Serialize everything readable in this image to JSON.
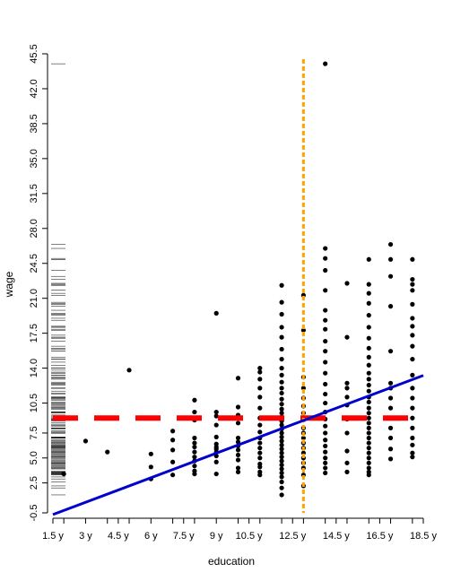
{
  "chart_data": {
    "type": "scatter",
    "xlabel": "education",
    "ylabel": "wage",
    "xlim": [
      1.5,
      18.5
    ],
    "ylim": [
      -0.5,
      45.5
    ],
    "x_ticks": [
      1.5,
      2,
      3,
      4,
      4.5,
      5,
      6,
      7,
      7.5,
      8,
      9,
      10,
      10.5,
      11,
      12,
      12.5,
      13,
      14,
      14.5,
      15,
      16,
      16.5,
      17,
      18,
      18.5
    ],
    "x_tick_labels": [
      {
        "value": 1.5,
        "label": "1.5 y"
      },
      {
        "value": 3,
        "label": "3 y"
      },
      {
        "value": 4.5,
        "label": "4.5 y"
      },
      {
        "value": 6,
        "label": "6 y"
      },
      {
        "value": 7.5,
        "label": "7.5 y"
      },
      {
        "value": 9,
        "label": "9 y"
      },
      {
        "value": 10.5,
        "label": "10.5 y"
      },
      {
        "value": 12.5,
        "label": "12.5 y"
      },
      {
        "value": 14.5,
        "label": "14.5 y"
      },
      {
        "value": 16.5,
        "label": "16.5 y"
      },
      {
        "value": 18.5,
        "label": "18.5 y"
      }
    ],
    "y_tick_labels": [
      "-0.5",
      "2.5",
      "5.0",
      "7.5",
      "10.5",
      "14.0",
      "17.5",
      "21.0",
      "24.5",
      "28.0",
      "31.5",
      "35.0",
      "38.5",
      "42.0",
      "45.5"
    ],
    "y_tick_values": [
      -0.5,
      2.5,
      5.0,
      7.5,
      10.5,
      14.0,
      17.5,
      21.0,
      24.5,
      28.0,
      31.5,
      35.0,
      38.5,
      42.0,
      45.5
    ],
    "mean_wage_line": {
      "y": 9.0,
      "color": "#ff0000",
      "style": "dashed"
    },
    "vertical_line": {
      "x": 13,
      "color": "#ffa500",
      "style": "dotted"
    },
    "regression_line": {
      "intercept": -1.9,
      "slope": 0.82,
      "color": "#0000cc"
    },
    "point_color": "#000000",
    "points": [
      [
        2,
        3.4
      ],
      [
        3,
        6.7
      ],
      [
        4,
        5.6
      ],
      [
        5,
        13.8
      ],
      [
        6,
        2.9
      ],
      [
        6,
        4.1
      ],
      [
        6,
        5.4
      ],
      [
        7,
        3.3
      ],
      [
        7,
        4.6
      ],
      [
        7,
        5.8
      ],
      [
        7,
        6.8
      ],
      [
        7,
        7.7
      ],
      [
        8,
        3.4
      ],
      [
        8,
        3.7
      ],
      [
        8,
        4.2
      ],
      [
        8,
        4.7
      ],
      [
        8,
        5.1
      ],
      [
        8,
        5.6
      ],
      [
        8,
        6.1
      ],
      [
        8,
        6.5
      ],
      [
        8,
        7.0
      ],
      [
        8,
        8.8
      ],
      [
        8,
        9.6
      ],
      [
        8,
        10.8
      ],
      [
        9,
        3.4
      ],
      [
        9,
        4.6
      ],
      [
        9,
        5.2
      ],
      [
        9,
        5.6
      ],
      [
        9,
        5.9
      ],
      [
        9,
        6.1
      ],
      [
        9,
        6.4
      ],
      [
        9,
        7.1
      ],
      [
        9,
        8.3
      ],
      [
        9,
        9.2
      ],
      [
        9,
        9.6
      ],
      [
        9,
        19.5
      ],
      [
        10,
        3.6
      ],
      [
        10,
        4.0
      ],
      [
        10,
        4.8
      ],
      [
        10,
        5.3
      ],
      [
        10,
        5.8
      ],
      [
        10,
        6.2
      ],
      [
        10,
        6.6
      ],
      [
        10,
        7.0
      ],
      [
        10,
        8.5
      ],
      [
        10,
        9.3
      ],
      [
        10,
        10.1
      ],
      [
        10,
        13.0
      ],
      [
        11,
        3.3
      ],
      [
        11,
        3.6
      ],
      [
        11,
        4.1
      ],
      [
        11,
        4.4
      ],
      [
        11,
        5.0
      ],
      [
        11,
        5.5
      ],
      [
        11,
        6.0
      ],
      [
        11,
        6.5
      ],
      [
        11,
        7.0
      ],
      [
        11,
        7.6
      ],
      [
        11,
        8.3
      ],
      [
        11,
        9.0
      ],
      [
        11,
        10.0
      ],
      [
        11,
        11.1
      ],
      [
        11,
        12.0
      ],
      [
        11,
        12.9
      ],
      [
        11,
        13.6
      ],
      [
        11,
        14.0
      ],
      [
        12,
        1.3
      ],
      [
        12,
        2.0
      ],
      [
        12,
        2.6
      ],
      [
        12,
        3.1
      ],
      [
        12,
        3.5
      ],
      [
        12,
        3.9
      ],
      [
        12,
        4.3
      ],
      [
        12,
        4.7
      ],
      [
        12,
        5.1
      ],
      [
        12,
        5.5
      ],
      [
        12,
        5.9
      ],
      [
        12,
        6.3
      ],
      [
        12,
        6.7
      ],
      [
        12,
        7.1
      ],
      [
        12,
        7.5
      ],
      [
        12,
        7.9
      ],
      [
        12,
        8.3
      ],
      [
        12,
        8.7
      ],
      [
        12,
        9.1
      ],
      [
        12,
        9.5
      ],
      [
        12,
        9.9
      ],
      [
        12,
        10.4
      ],
      [
        12,
        10.9
      ],
      [
        12,
        11.5
      ],
      [
        12,
        12.0
      ],
      [
        12,
        12.6
      ],
      [
        12,
        13.3
      ],
      [
        12,
        14.0
      ],
      [
        12,
        14.9
      ],
      [
        12,
        15.9
      ],
      [
        12,
        17.1
      ],
      [
        12,
        18.1
      ],
      [
        12,
        19.4
      ],
      [
        12,
        20.6
      ],
      [
        12,
        22.3
      ],
      [
        13,
        2.2
      ],
      [
        13,
        3.3
      ],
      [
        13,
        4.0
      ],
      [
        13,
        4.5
      ],
      [
        13,
        5.0
      ],
      [
        13,
        5.5
      ],
      [
        13,
        6.0
      ],
      [
        13,
        6.5
      ],
      [
        13,
        7.0
      ],
      [
        13,
        7.5
      ],
      [
        13,
        8.0
      ],
      [
        13,
        8.8
      ],
      [
        13,
        9.5
      ],
      [
        13,
        10.2
      ],
      [
        13,
        11.0
      ],
      [
        13,
        12.0
      ],
      [
        13,
        13.1
      ],
      [
        13,
        17.8
      ],
      [
        13,
        21.3
      ],
      [
        14,
        3.5
      ],
      [
        14,
        4.0
      ],
      [
        14,
        4.5
      ],
      [
        14,
        5.0
      ],
      [
        14,
        5.6
      ],
      [
        14,
        6.2
      ],
      [
        14,
        6.8
      ],
      [
        14,
        7.5
      ],
      [
        14,
        8.2
      ],
      [
        14,
        8.9
      ],
      [
        14,
        9.6
      ],
      [
        14,
        10.5
      ],
      [
        14,
        11.4
      ],
      [
        14,
        12.4
      ],
      [
        14,
        13.5
      ],
      [
        14,
        14.6
      ],
      [
        14,
        15.7
      ],
      [
        14,
        16.7
      ],
      [
        14,
        17.9
      ],
      [
        14,
        18.8
      ],
      [
        14,
        19.8
      ],
      [
        14,
        21.8
      ],
      [
        14,
        23.8
      ],
      [
        14,
        25.0
      ],
      [
        14,
        26.0
      ],
      [
        14,
        44.5
      ],
      [
        15,
        3.6
      ],
      [
        15,
        4.5
      ],
      [
        15,
        5.7
      ],
      [
        15,
        7.5
      ],
      [
        15,
        8.9
      ],
      [
        15,
        10.3
      ],
      [
        15,
        11.1
      ],
      [
        15,
        12.0
      ],
      [
        15,
        12.5
      ],
      [
        15,
        17.1
      ],
      [
        15,
        22.5
      ],
      [
        16,
        3.3
      ],
      [
        16,
        3.6
      ],
      [
        16,
        4.0
      ],
      [
        16,
        4.5
      ],
      [
        16,
        5.0
      ],
      [
        16,
        5.5
      ],
      [
        16,
        6.0
      ],
      [
        16,
        6.5
      ],
      [
        16,
        7.0
      ],
      [
        16,
        7.5
      ],
      [
        16,
        8.0
      ],
      [
        16,
        8.5
      ],
      [
        16,
        9.0
      ],
      [
        16,
        9.5
      ],
      [
        16,
        10.0
      ],
      [
        16,
        10.6
      ],
      [
        16,
        11.1
      ],
      [
        16,
        11.7
      ],
      [
        16,
        12.3
      ],
      [
        16,
        12.9
      ],
      [
        16,
        13.5
      ],
      [
        16,
        14.3
      ],
      [
        16,
        15.1
      ],
      [
        16,
        16.0
      ],
      [
        16,
        17.0
      ],
      [
        16,
        18.1
      ],
      [
        16,
        19.3
      ],
      [
        16,
        20.5
      ],
      [
        16,
        21.5
      ],
      [
        16,
        22.4
      ],
      [
        16,
        24.9
      ],
      [
        17,
        4.9
      ],
      [
        17,
        5.9
      ],
      [
        17,
        7.0
      ],
      [
        17,
        8.0
      ],
      [
        17,
        9.0
      ],
      [
        17,
        10.0
      ],
      [
        17,
        11.0
      ],
      [
        17,
        12.0
      ],
      [
        17,
        12.5
      ],
      [
        17,
        15.7
      ],
      [
        17,
        20.2
      ],
      [
        17,
        23.2
      ],
      [
        17,
        24.9
      ],
      [
        17,
        26.4
      ],
      [
        18,
        5.1
      ],
      [
        18,
        5.5
      ],
      [
        18,
        6.3
      ],
      [
        18,
        7.0
      ],
      [
        18,
        8.0
      ],
      [
        18,
        9.0
      ],
      [
        18,
        10.0
      ],
      [
        18,
        11.0
      ],
      [
        18,
        12.0
      ],
      [
        18,
        13.3
      ],
      [
        18,
        14.9
      ],
      [
        18,
        16.2
      ],
      [
        18,
        17.3
      ],
      [
        18,
        18.2
      ],
      [
        18,
        19.0
      ],
      [
        18,
        20.4
      ],
      [
        18,
        21.8
      ],
      [
        18,
        22.4
      ],
      [
        18,
        22.9
      ],
      [
        18,
        24.9
      ]
    ]
  }
}
